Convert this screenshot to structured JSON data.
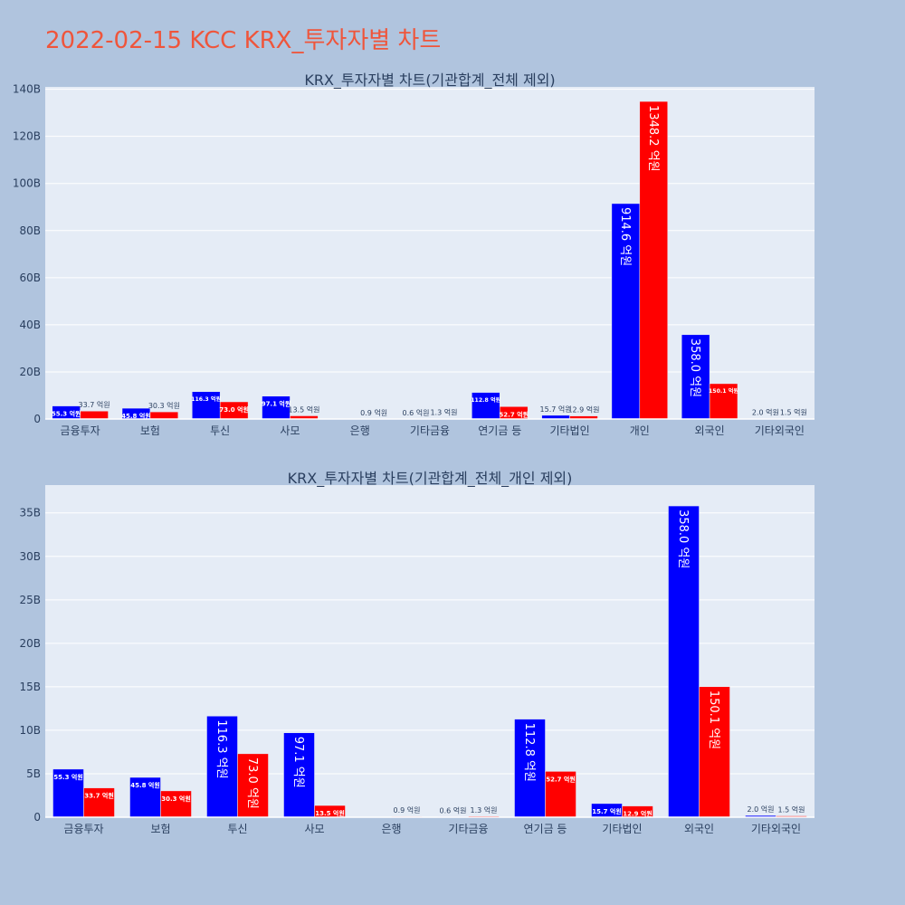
{
  "page": {
    "title": "2022-02-15 KCC KRX_투자자별 차트"
  },
  "colors": {
    "buy": "#0000ff",
    "sell": "#ff0000",
    "plot_bg": "#e5ecf6",
    "paper_bg": "#b0c4de",
    "title": "#ef553b"
  },
  "chart_data": [
    {
      "type": "bar",
      "title": "KRX_투자자별 차트(기관합계_전체 제외)",
      "categories": [
        "금융투자",
        "보험",
        "투신",
        "사모",
        "은행",
        "기타금융",
        "연기금 등",
        "기타법인",
        "개인",
        "외국인",
        "기타외국인"
      ],
      "series": [
        {
          "name": "buy",
          "values": [
            5.53,
            4.58,
            11.63,
            9.71,
            0,
            0.06,
            11.28,
            1.57,
            91.46,
            35.8,
            0.2
          ],
          "labels": [
            "55.3 억원",
            "45.8 억원",
            "116.3 억원",
            "97.1 억원",
            "",
            "0.6 억원",
            "112.8 억원",
            "15.7 억원",
            "914.6 억원",
            "358.0 억원",
            "2.0 억원"
          ]
        },
        {
          "name": "sell",
          "values": [
            3.37,
            3.03,
            7.3,
            1.35,
            0.09,
            0.13,
            5.27,
            1.29,
            134.82,
            15.01,
            0.15
          ],
          "labels": [
            "33.7 억원",
            "30.3 억원",
            "73.0 억원",
            "13.5 억원",
            "0.9 억원",
            "1.3 억원",
            "52.7 억원",
            "12.9 억원",
            "1348.2 억원",
            "150.1 억원",
            "1.5 억원"
          ]
        }
      ],
      "ylim": [
        0,
        141
      ],
      "yticks": [
        0,
        20,
        40,
        60,
        80,
        100,
        120,
        140
      ],
      "ytick_labels": [
        "0",
        "20B",
        "40B",
        "60B",
        "80B",
        "100B",
        "120B",
        "140B"
      ]
    },
    {
      "type": "bar",
      "title": "KRX_투자자별 차트(기관합계_전체_개인 제외)",
      "categories": [
        "금융투자",
        "보험",
        "투신",
        "사모",
        "은행",
        "기타금융",
        "연기금 등",
        "기타법인",
        "외국인",
        "기타외국인"
      ],
      "series": [
        {
          "name": "buy",
          "values": [
            5.53,
            4.58,
            11.63,
            9.71,
            0,
            0.06,
            11.28,
            1.57,
            35.8,
            0.2
          ],
          "labels": [
            "55.3 억원",
            "45.8 억원",
            "116.3 억원",
            "97.1 억원",
            "",
            "0.6 억원",
            "112.8 억원",
            "15.7 억원",
            "358.0 억원",
            "2.0 억원"
          ]
        },
        {
          "name": "sell",
          "values": [
            3.37,
            3.03,
            7.3,
            1.35,
            0.09,
            0.13,
            5.27,
            1.29,
            15.01,
            0.15
          ],
          "labels": [
            "33.7 억원",
            "30.3 억원",
            "73.0 억원",
            "13.5 억원",
            "0.9 억원",
            "1.3 억원",
            "52.7 억원",
            "12.9 억원",
            "150.1 억원",
            "1.5 억원"
          ]
        }
      ],
      "ylim": [
        0,
        38.2
      ],
      "yticks": [
        0,
        5,
        10,
        15,
        20,
        25,
        30,
        35
      ],
      "ytick_labels": [
        "0",
        "5B",
        "10B",
        "15B",
        "20B",
        "25B",
        "30B",
        "35B"
      ]
    }
  ]
}
